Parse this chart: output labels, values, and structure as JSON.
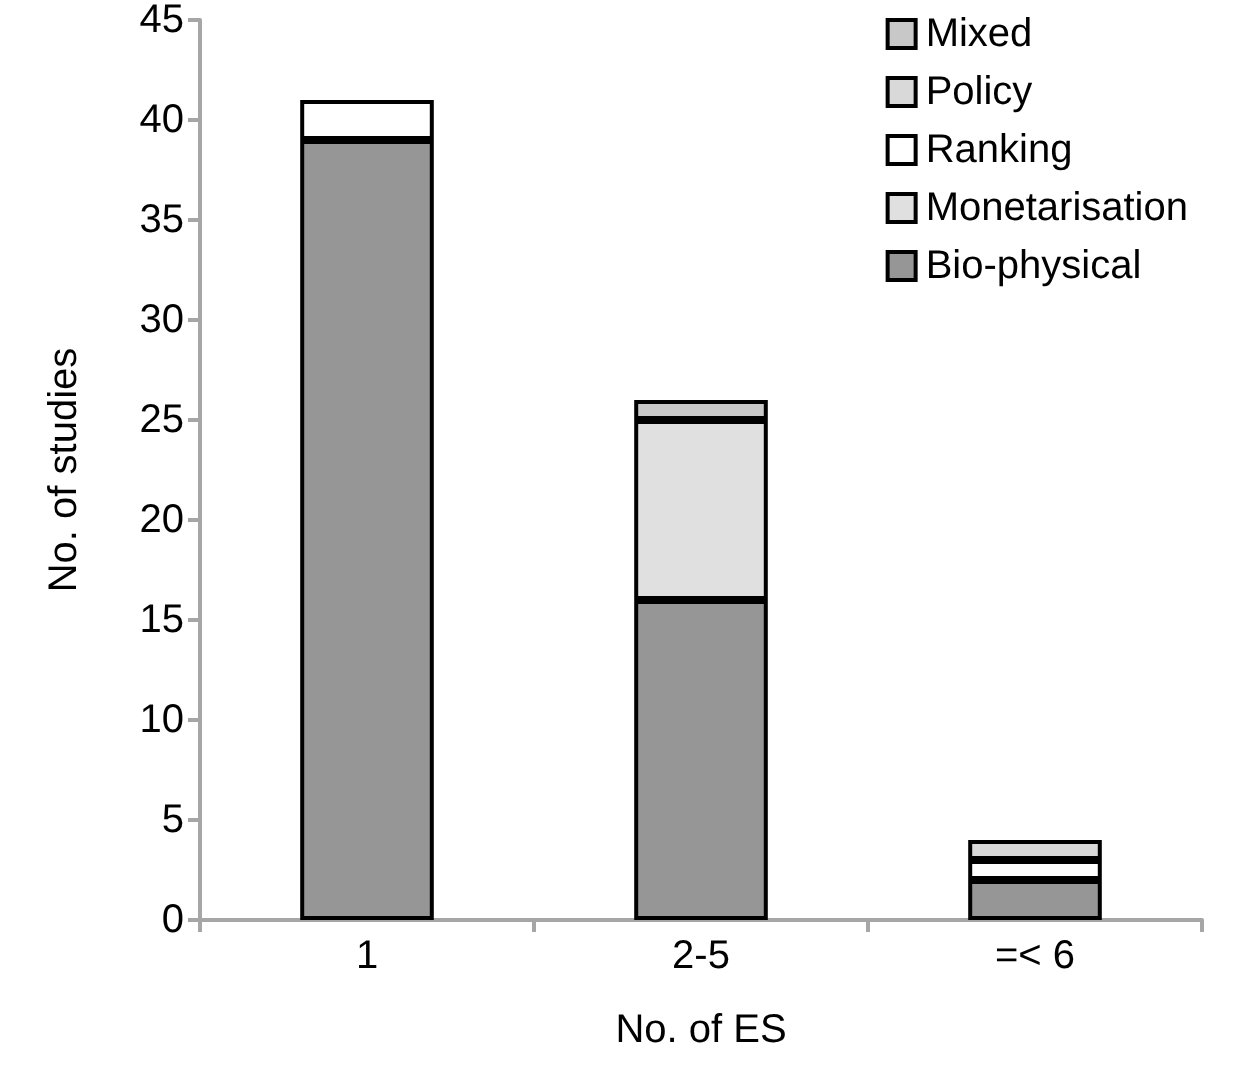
{
  "chart_data": {
    "type": "bar",
    "stacked": true,
    "xlabel": "No. of ES",
    "ylabel": "No. of studies",
    "categories": [
      "1",
      "2-5",
      "=< 6"
    ],
    "series": [
      {
        "name": "Bio-physical",
        "color": "#969696",
        "values": [
          39,
          16,
          2
        ]
      },
      {
        "name": "Monetarisation",
        "color": "#e0e0e0",
        "values": [
          0,
          9,
          0
        ]
      },
      {
        "name": "Ranking",
        "color": "#ffffff",
        "values": [
          2,
          0,
          1
        ]
      },
      {
        "name": "Policy",
        "color": "#d9d9d9",
        "values": [
          0,
          0,
          1
        ]
      },
      {
        "name": "Mixed",
        "color": "#c8c8c8",
        "values": [
          0,
          1,
          0
        ]
      }
    ],
    "ylim": [
      0,
      45
    ],
    "yticks": [
      0,
      5,
      10,
      15,
      20,
      25,
      30,
      35,
      40,
      45
    ],
    "grid": false,
    "legend": "top right"
  }
}
